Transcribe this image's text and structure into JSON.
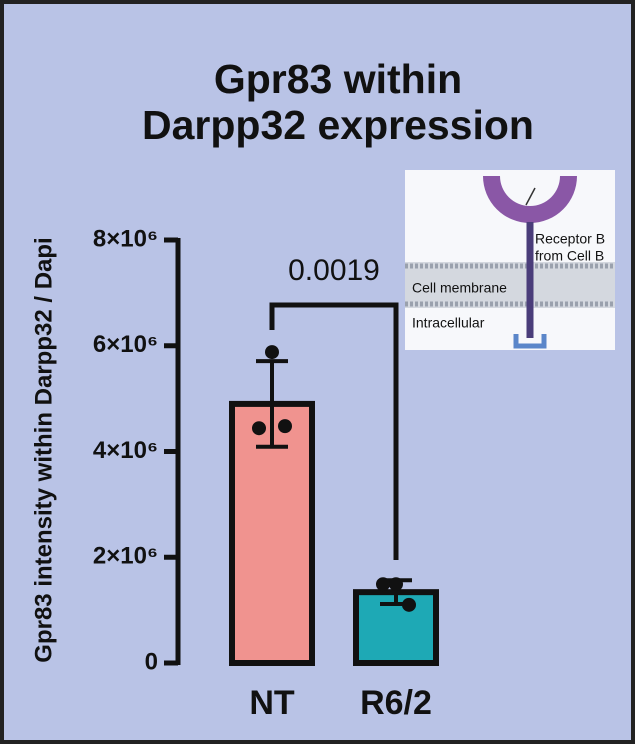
{
  "chart_data": {
    "type": "bar",
    "title": "Gpr83 within Darpp32 expression",
    "y_label": "Gpr83 intensity within Darpp32 / Dapi",
    "categories": [
      "NT",
      "R6/2"
    ],
    "values": [
      4900000,
      1340000
    ],
    "errors": [
      810000,
      225000
    ],
    "colors": [
      "#f0938f",
      "#1ea9b5"
    ],
    "points": [
      [
        5880000,
        4440000,
        4480000
      ],
      [
        1490000,
        1490000,
        1100000
      ]
    ],
    "ylim": [
      0,
      8000000
    ],
    "yticks": [
      0,
      {
        "value": 2000000,
        "label": "2×10⁶"
      },
      {
        "value": 4000000,
        "label": "4×10⁶"
      },
      {
        "value": 6000000,
        "label": "6×10⁶"
      },
      {
        "value": 8000000,
        "label": "8×10⁶"
      }
    ],
    "annotations": [
      {
        "text": "0.0019"
      }
    ]
  },
  "inset": {
    "receptor_line1": "Receptor B",
    "receptor_line2": "from Cell B",
    "membrane": "Cell membrane",
    "intracellular": "Intracellular"
  }
}
